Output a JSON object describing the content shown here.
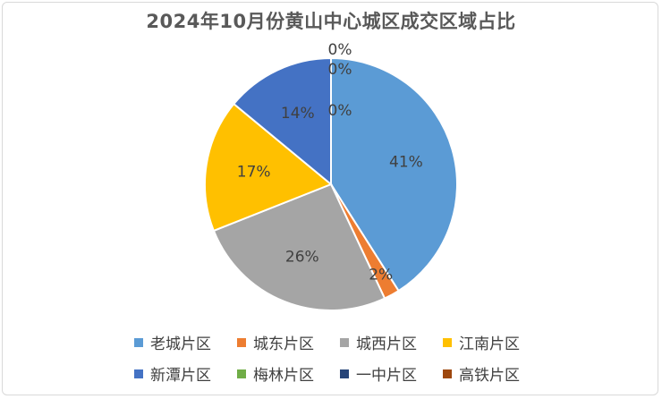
{
  "chart_data": {
    "type": "pie",
    "title": "2024年10月份黄山中心城区成交区域占比",
    "categories": [
      "老城片区",
      "城东片区",
      "城西片区",
      "江南片区",
      "新潭片区",
      "梅林片区",
      "一中片区",
      "高铁片区"
    ],
    "values": [
      41,
      2,
      26,
      17,
      14,
      0,
      0,
      0
    ],
    "labels": [
      "41%",
      "2%",
      "26%",
      "17%",
      "14%",
      "0%",
      "0%",
      "0%"
    ],
    "colors": [
      "#5b9bd5",
      "#ed7d31",
      "#a5a5a5",
      "#ffc000",
      "#4472c4",
      "#70ad47",
      "#264478",
      "#9e480e"
    ],
    "legend_position": "bottom"
  }
}
